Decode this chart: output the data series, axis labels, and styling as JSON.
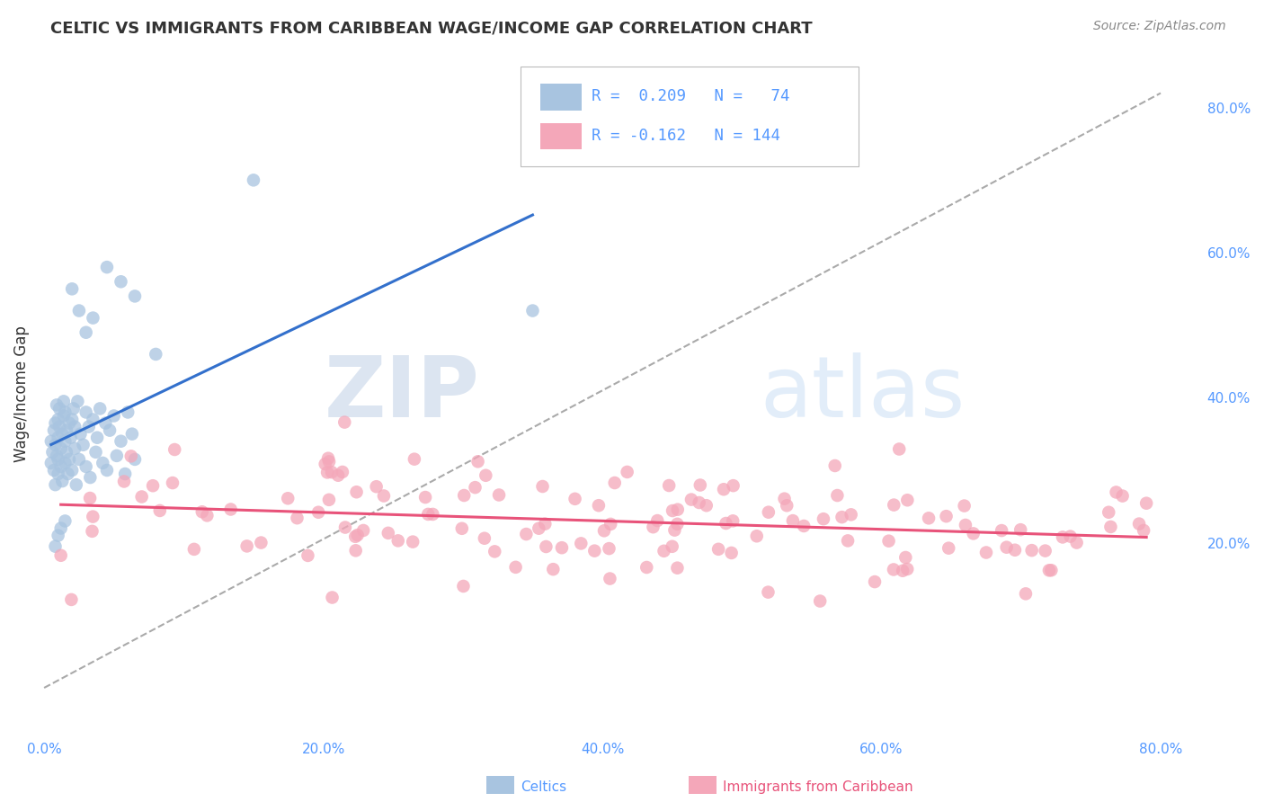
{
  "title": "CELTIC VS IMMIGRANTS FROM CARIBBEAN WAGE/INCOME GAP CORRELATION CHART",
  "source": "Source: ZipAtlas.com",
  "ylabel": "Wage/Income Gap",
  "legend_label1": "Celtics",
  "legend_label2": "Immigrants from Caribbean",
  "R1": 0.209,
  "N1": 74,
  "R2": -0.162,
  "N2": 144,
  "y_ticks": [
    0.2,
    0.4,
    0.6,
    0.8
  ],
  "y_tick_labels": [
    "20.0%",
    "40.0%",
    "60.0%",
    "80.0%"
  ],
  "x_tick_labels": [
    "0.0%",
    "20.0%",
    "40.0%",
    "60.0%",
    "80.0%"
  ],
  "x_ticks": [
    0.0,
    0.2,
    0.4,
    0.6,
    0.8
  ],
  "background_color": "#ffffff",
  "celtics_color": "#a8c4e0",
  "caribbean_color": "#f4a7b9",
  "trend1_color": "#3370cc",
  "trend2_color": "#e8537a",
  "watermark_color": "#d0dce8",
  "grid_color": "#cccccc",
  "tick_color": "#5599ff",
  "title_color": "#333333",
  "source_color": "#888888"
}
